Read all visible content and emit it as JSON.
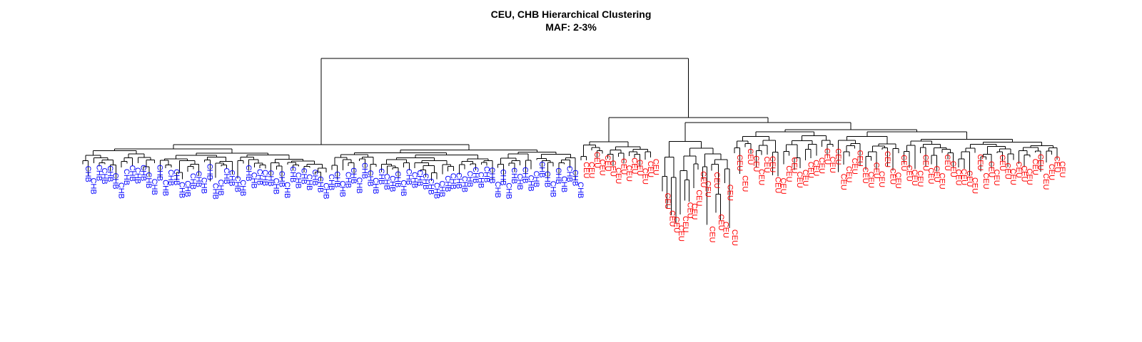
{
  "title": "CEU, CHB Hierarchical Clustering",
  "subtitle": "MAF: 2-3%",
  "colors": {
    "CHB": "#0000ff",
    "CEU": "#ff0000",
    "branch": "#000000"
  },
  "chart_data": {
    "type": "dendrogram",
    "title": "CEU, CHB Hierarchical Clustering",
    "subtitle": "MAF: 2-3%",
    "axes_visible": false,
    "groups": [
      {
        "name": "CHB",
        "count": 90,
        "color": "#0000ff"
      },
      {
        "name": "CEU",
        "count": 90,
        "color": "#ff0000"
      }
    ],
    "leaf_order": [
      "CHB",
      "CEU"
    ]
  }
}
